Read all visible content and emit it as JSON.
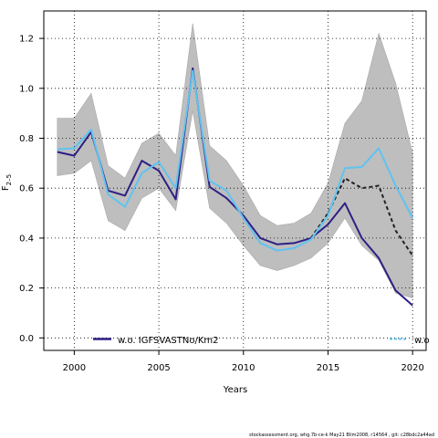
{
  "chart_data": {
    "type": "line",
    "xlabel": "Years",
    "ylabel": "F",
    "ylabel_sub": "2–5",
    "xlim": [
      1998.2,
      2020.8
    ],
    "ylim": [
      -0.05,
      1.31
    ],
    "xticks": [
      2000,
      2005,
      2010,
      2015,
      2020
    ],
    "yticks": [
      0.0,
      0.2,
      0.4,
      0.6,
      0.8,
      1.0,
      1.2
    ],
    "grid": true,
    "legend_position": "bottom",
    "band": {
      "x": [
        1999,
        2000,
        2001,
        2002,
        2003,
        2004,
        2005,
        2006,
        2007,
        2008,
        2009,
        2010,
        2011,
        2012,
        2013,
        2014,
        2015,
        2016,
        2017,
        2018,
        2019,
        2020
      ],
      "upper": [
        0.88,
        0.88,
        0.98,
        0.69,
        0.64,
        0.78,
        0.82,
        0.73,
        1.26,
        0.77,
        0.71,
        0.61,
        0.49,
        0.45,
        0.46,
        0.5,
        0.62,
        0.86,
        0.95,
        1.22,
        1.02,
        0.74
      ],
      "lower": [
        0.65,
        0.66,
        0.71,
        0.47,
        0.43,
        0.56,
        0.6,
        0.51,
        0.91,
        0.52,
        0.46,
        0.37,
        0.29,
        0.27,
        0.29,
        0.32,
        0.38,
        0.48,
        0.37,
        0.31,
        0.18,
        0.16
      ],
      "color": "#bebebe"
    },
    "series": [
      {
        "name": "",
        "color": "#222222",
        "dashed": true,
        "x": [
          2014,
          2015,
          2016,
          2017,
          2018,
          2019,
          2020
        ],
        "values": [
          0.4,
          0.5,
          0.64,
          0.6,
          0.61,
          0.43,
          0.33
        ]
      },
      {
        "name": "w.o. IGFSVASTNo/Km2",
        "color": "#2e1f85",
        "dashed": false,
        "x": [
          1999,
          2000,
          2001,
          2002,
          2003,
          2004,
          2005,
          2006,
          2007,
          2008,
          2009,
          2010,
          2011,
          2012,
          2013,
          2014,
          2015,
          2016,
          2017,
          2018,
          2019,
          2020
        ],
        "values": [
          0.745,
          0.73,
          0.825,
          0.59,
          0.57,
          0.71,
          0.67,
          0.555,
          1.08,
          0.605,
          0.56,
          0.49,
          0.4,
          0.375,
          0.38,
          0.4,
          0.455,
          0.54,
          0.4,
          0.32,
          0.19,
          0.13
        ]
      },
      {
        "name": "w.o",
        "color": "#5fc3f0",
        "dashed": false,
        "x": [
          1999,
          2000,
          2001,
          2002,
          2003,
          2004,
          2005,
          2006,
          2007,
          2008,
          2009,
          2010,
          2011,
          2012,
          2013,
          2014,
          2015,
          2016,
          2017,
          2018,
          2019,
          2020
        ],
        "values": [
          0.755,
          0.76,
          0.835,
          0.575,
          0.525,
          0.66,
          0.705,
          0.6,
          1.07,
          0.63,
          0.59,
          0.48,
          0.38,
          0.35,
          0.36,
          0.395,
          0.49,
          0.68,
          0.685,
          0.76,
          0.61,
          0.48
        ]
      }
    ]
  },
  "legend": {
    "left_label": "w.o. IGFSVASTNo/Km2",
    "right_label": "w.o"
  },
  "footer": "stockassessment.org,  whg.7b-ce-k  May21  Blim2008,  r14564 ,  git:  c28bdc2a44ad"
}
